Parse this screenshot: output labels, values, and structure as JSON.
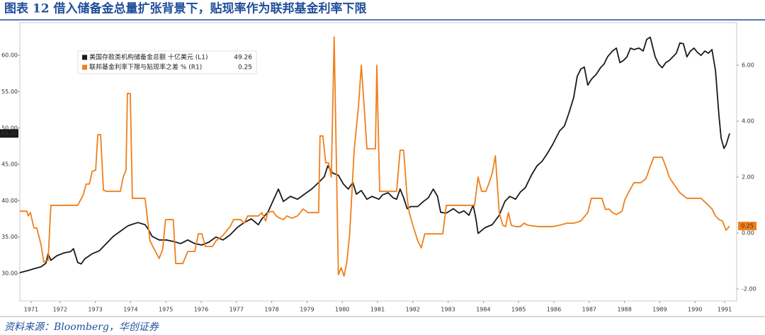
{
  "chart_data": {
    "type": "line",
    "title": "图表 12 借入储备金总量扩张背景下，贴现率作为联邦基金利率下限",
    "source": "资料来源：Bloomberg，华创证券",
    "xlim": [
      1971.36,
      1991.68
    ],
    "xticks": [
      {
        "value": 1971.68,
        "label": "1971"
      },
      {
        "value": 1972.5,
        "label": "1972"
      },
      {
        "value": 1973.5,
        "label": "1973"
      },
      {
        "value": 1974.5,
        "label": "1974"
      },
      {
        "value": 1975.5,
        "label": "1975"
      },
      {
        "value": 1976.5,
        "label": "1976"
      },
      {
        "value": 1977.5,
        "label": "1977"
      },
      {
        "value": 1978.5,
        "label": "1978"
      },
      {
        "value": 1979.5,
        "label": "1979"
      },
      {
        "value": 1980.5,
        "label": "1980"
      },
      {
        "value": 1981.5,
        "label": "1981"
      },
      {
        "value": 1982.5,
        "label": "1982"
      },
      {
        "value": 1983.5,
        "label": "1983"
      },
      {
        "value": 1984.5,
        "label": "1984"
      },
      {
        "value": 1985.5,
        "label": "1985"
      },
      {
        "value": 1986.5,
        "label": "1986"
      },
      {
        "value": 1987.5,
        "label": "1987"
      },
      {
        "value": 1988.5,
        "label": "1988"
      },
      {
        "value": 1989.5,
        "label": "1989"
      },
      {
        "value": 1990.5,
        "label": "1990"
      },
      {
        "value": 1991.34,
        "label": "1991"
      }
    ],
    "ylim": [
      26.2,
      64.5
    ],
    "yticks": [
      {
        "value": 30,
        "label": "30.00"
      },
      {
        "value": 35,
        "label": "35.00"
      },
      {
        "value": 40,
        "label": "40.00"
      },
      {
        "value": 45,
        "label": "45.00"
      },
      {
        "value": 50,
        "label": "50.00"
      },
      {
        "value": 55,
        "label": "55.00"
      },
      {
        "value": 60,
        "label": "60.00"
      }
    ],
    "y2lim": [
      -2.43,
      7.52
    ],
    "y2ticks": [
      {
        "value": -2,
        "label": "-2.00"
      },
      {
        "value": 0,
        "label": "0.00"
      },
      {
        "value": 2,
        "label": "2.00"
      },
      {
        "value": 4,
        "label": "4.00"
      },
      {
        "value": 6,
        "label": "6.00"
      }
    ],
    "series": [
      {
        "name": "美国存款类机构储备金总额 十亿美元 (L1)",
        "color": "#1a1a1a",
        "axis": "y",
        "x": [
          1971.36,
          1971.6,
          1971.8,
          1971.96,
          1972.1,
          1972.16,
          1972.24,
          1972.4,
          1972.6,
          1972.8,
          1972.88,
          1973.0,
          1973.1,
          1973.2,
          1973.41,
          1973.61,
          1973.81,
          1974.01,
          1974.21,
          1974.41,
          1974.51,
          1974.71,
          1974.91,
          1975.01,
          1975.11,
          1975.31,
          1975.51,
          1975.71,
          1975.92,
          1976.12,
          1976.32,
          1976.52,
          1976.72,
          1976.92,
          1977.12,
          1977.32,
          1977.52,
          1977.72,
          1977.92,
          1978.12,
          1978.22,
          1978.39,
          1978.53,
          1978.69,
          1978.83,
          1979.03,
          1979.23,
          1979.43,
          1979.63,
          1979.83,
          1979.99,
          1980.09,
          1980.23,
          1980.39,
          1980.53,
          1980.67,
          1980.8,
          1980.9,
          1981.04,
          1981.2,
          1981.34,
          1981.54,
          1981.64,
          1981.8,
          1981.94,
          1982.04,
          1982.14,
          1982.24,
          1982.34,
          1982.44,
          1982.64,
          1982.8,
          1982.94,
          1983.08,
          1983.2,
          1983.29,
          1983.45,
          1983.65,
          1983.81,
          1983.95,
          1984.09,
          1984.21,
          1984.29,
          1984.35,
          1984.55,
          1984.75,
          1984.95,
          1985.11,
          1985.25,
          1985.41,
          1985.55,
          1985.69,
          1985.86,
          1986.02,
          1986.16,
          1986.3,
          1986.46,
          1986.66,
          1986.8,
          1986.92,
          1987.06,
          1987.16,
          1987.26,
          1987.36,
          1987.46,
          1987.56,
          1987.7,
          1987.82,
          1987.92,
          1988.02,
          1988.16,
          1988.27,
          1988.37,
          1988.47,
          1988.57,
          1988.67,
          1988.77,
          1988.91,
          1989.03,
          1989.13,
          1989.23,
          1989.37,
          1989.47,
          1989.57,
          1989.67,
          1989.77,
          1989.87,
          1989.97,
          1990.07,
          1990.17,
          1990.27,
          1990.37,
          1990.47,
          1990.57,
          1990.67,
          1990.78,
          1990.88,
          1990.98,
          1991.08,
          1991.18,
          1991.24,
          1991.32,
          1991.38,
          1991.48
        ],
        "values": [
          30.1,
          30.4,
          30.7,
          30.9,
          31.4,
          32.7,
          31.8,
          32.4,
          32.8,
          33.0,
          33.4,
          31.5,
          31.3,
          32.0,
          32.7,
          33.1,
          34.1,
          35.1,
          35.8,
          36.5,
          36.7,
          37.0,
          36.7,
          36.0,
          35.1,
          34.6,
          34.6,
          34.4,
          34.1,
          34.6,
          34.1,
          33.9,
          34.3,
          35.0,
          34.6,
          35.3,
          36.3,
          37.0,
          37.5,
          36.7,
          37.5,
          38.4,
          39.9,
          41.6,
          39.9,
          40.6,
          40.2,
          40.9,
          41.6,
          42.5,
          43.3,
          44.8,
          43.8,
          43.5,
          42.3,
          41.6,
          42.5,
          40.9,
          41.4,
          40.2,
          40.6,
          40.2,
          40.8,
          41.1,
          40.4,
          40.2,
          41.6,
          40.4,
          38.9,
          39.2,
          39.2,
          39.9,
          40.4,
          41.6,
          40.6,
          38.4,
          38.3,
          38.9,
          38.3,
          38.6,
          38.0,
          39.4,
          37.5,
          35.5,
          36.3,
          36.7,
          38.0,
          39.9,
          40.6,
          40.2,
          41.2,
          41.8,
          43.5,
          44.8,
          45.4,
          46.4,
          47.7,
          49.6,
          50.3,
          52.0,
          54.2,
          57.1,
          58.1,
          58.4,
          55.9,
          56.7,
          57.4,
          58.3,
          58.8,
          59.8,
          60.6,
          61.0,
          59.0,
          59.3,
          59.8,
          61.0,
          60.8,
          61.0,
          60.6,
          62.2,
          62.5,
          59.8,
          58.8,
          58.3,
          59.0,
          59.3,
          59.8,
          60.3,
          61.7,
          61.6,
          59.8,
          60.6,
          61.0,
          60.4,
          60.0,
          60.6,
          60.3,
          60.8,
          57.9,
          51.6,
          48.6,
          47.2,
          47.7,
          49.26
        ]
      },
      {
        "name": "联邦基金利率下限与贴现率之差 % (R1)",
        "color": "#f07f1a",
        "axis": "y2",
        "x": [
          1971.36,
          1971.56,
          1971.6,
          1971.66,
          1971.76,
          1971.84,
          1971.96,
          1972.04,
          1972.1,
          1972.16,
          1972.24,
          1972.4,
          1972.8,
          1973.0,
          1973.16,
          1973.24,
          1973.33,
          1973.41,
          1973.51,
          1973.57,
          1973.65,
          1973.73,
          1973.81,
          1974.11,
          1974.21,
          1974.29,
          1974.37,
          1974.41,
          1974.49,
          1974.55,
          1974.65,
          1974.91,
          1975.05,
          1975.17,
          1975.31,
          1975.41,
          1975.49,
          1975.71,
          1975.78,
          1975.98,
          1976.12,
          1976.32,
          1976.42,
          1976.52,
          1976.62,
          1976.82,
          1976.92,
          1977.12,
          1977.32,
          1977.42,
          1977.62,
          1977.72,
          1977.82,
          1978.02,
          1978.12,
          1978.22,
          1978.33,
          1978.39,
          1978.53,
          1978.63,
          1978.73,
          1978.83,
          1978.93,
          1979.07,
          1979.23,
          1979.39,
          1979.53,
          1979.63,
          1979.83,
          1979.87,
          1979.95,
          1980.03,
          1980.11,
          1980.19,
          1980.27,
          1980.39,
          1980.47,
          1980.55,
          1980.63,
          1980.71,
          1980.84,
          1980.96,
          1981.04,
          1981.12,
          1981.2,
          1981.34,
          1981.44,
          1981.48,
          1981.56,
          1981.74,
          1981.94,
          1982.04,
          1982.14,
          1982.24,
          1982.34,
          1982.4,
          1982.5,
          1982.64,
          1982.74,
          1982.84,
          1983.04,
          1983.35,
          1983.45,
          1983.65,
          1983.85,
          1984.05,
          1984.15,
          1984.25,
          1984.35,
          1984.45,
          1984.57,
          1984.65,
          1984.75,
          1984.84,
          1984.95,
          1985.05,
          1985.13,
          1985.21,
          1985.29,
          1985.41,
          1985.55,
          1985.65,
          1985.76,
          1986.06,
          1986.16,
          1986.46,
          1986.66,
          1986.86,
          1987.06,
          1987.26,
          1987.46,
          1987.56,
          1987.66,
          1987.86,
          1987.96,
          1988.06,
          1988.16,
          1988.27,
          1988.43,
          1988.51,
          1988.63,
          1988.77,
          1988.97,
          1989.11,
          1989.23,
          1989.33,
          1989.47,
          1989.57,
          1989.67,
          1989.77,
          1989.87,
          1989.97,
          1990.07,
          1990.27,
          1990.67,
          1990.88,
          1990.98,
          1991.08,
          1991.18,
          1991.28,
          1991.32,
          1991.38,
          1991.48
        ],
        "values": [
          0.78,
          0.78,
          0.61,
          0.73,
          0.18,
          0.18,
          -0.41,
          -1.04,
          -0.99,
          -0.99,
          0.99,
          0.99,
          0.99,
          0.99,
          1.37,
          1.75,
          1.75,
          2.2,
          2.25,
          3.52,
          3.52,
          1.54,
          1.49,
          1.49,
          1.49,
          2.0,
          2.25,
          4.99,
          4.99,
          1.24,
          1.24,
          1.24,
          -0.28,
          -0.58,
          -0.91,
          -0.58,
          0.48,
          0.48,
          -1.09,
          -1.09,
          -0.66,
          -0.66,
          -0.03,
          -0.03,
          -0.48,
          -0.48,
          -0.28,
          -0.08,
          0.23,
          0.48,
          0.48,
          0.35,
          0.61,
          0.61,
          0.61,
          0.73,
          0.43,
          0.73,
          0.78,
          0.61,
          0.53,
          0.48,
          0.61,
          0.53,
          0.61,
          0.86,
          0.73,
          0.73,
          0.73,
          3.47,
          3.47,
          2.51,
          2.51,
          2.0,
          7.01,
          -1.49,
          -1.24,
          -1.54,
          -1.04,
          -0.03,
          3.01,
          4.53,
          6.0,
          4.53,
          3.01,
          3.01,
          3.01,
          6.0,
          1.49,
          1.49,
          1.49,
          1.49,
          2.96,
          2.96,
          1.24,
          0.73,
          0.28,
          -0.28,
          -0.53,
          -0.03,
          -0.03,
          -0.03,
          0.99,
          0.99,
          0.99,
          0.99,
          0.99,
          0.99,
          2.0,
          1.49,
          1.49,
          1.75,
          2.13,
          2.76,
          0.73,
          0.28,
          0.23,
          0.73,
          0.28,
          0.23,
          0.23,
          0.35,
          0.28,
          0.23,
          0.23,
          0.23,
          0.28,
          0.35,
          0.35,
          0.43,
          0.73,
          1.24,
          1.24,
          1.24,
          0.84,
          0.86,
          0.73,
          0.66,
          0.78,
          1.19,
          1.49,
          1.8,
          1.8,
          1.95,
          2.38,
          2.71,
          2.71,
          2.71,
          2.38,
          2.0,
          1.8,
          1.62,
          1.44,
          1.24,
          1.24,
          0.99,
          0.86,
          0.61,
          0.48,
          0.43,
          0.28,
          0.1,
          0.25
        ]
      }
    ]
  }
}
